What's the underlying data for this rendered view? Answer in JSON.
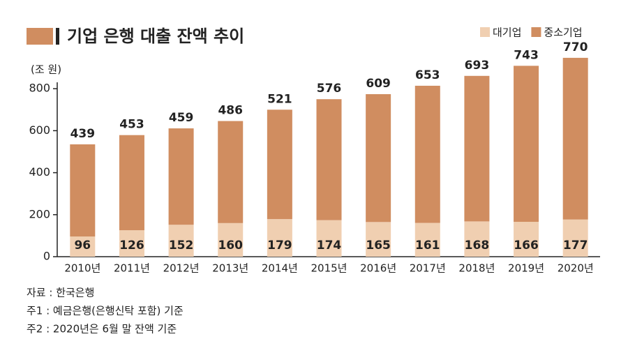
{
  "chart_data": {
    "type": "stacked-bar",
    "title": "기업 은행 대출 잔액 추이",
    "y_label": "(조 원)",
    "categories": [
      "2010년",
      "2011년",
      "2012년",
      "2013년",
      "2014년",
      "2015년",
      "2016년",
      "2017년",
      "2018년",
      "2019년",
      "2020년"
    ],
    "series": [
      {
        "name": "대기업",
        "color": "#f0cfb1",
        "values": [
          96,
          126,
          152,
          160,
          179,
          174,
          165,
          161,
          168,
          166,
          177
        ]
      },
      {
        "name": "중소기업",
        "color": "#d08d60",
        "values": [
          439,
          453,
          459,
          486,
          521,
          576,
          609,
          653,
          693,
          743,
          770
        ]
      }
    ],
    "ylim": [
      0,
      950
    ],
    "yticks": [
      0,
      200,
      400,
      600,
      800
    ],
    "notes": [
      "자료 : 한국은행",
      "주1 : 예금은행(은행신탁 포함) 기준",
      "주2 : 2020년은 6월 말 잔액 기준"
    ]
  }
}
